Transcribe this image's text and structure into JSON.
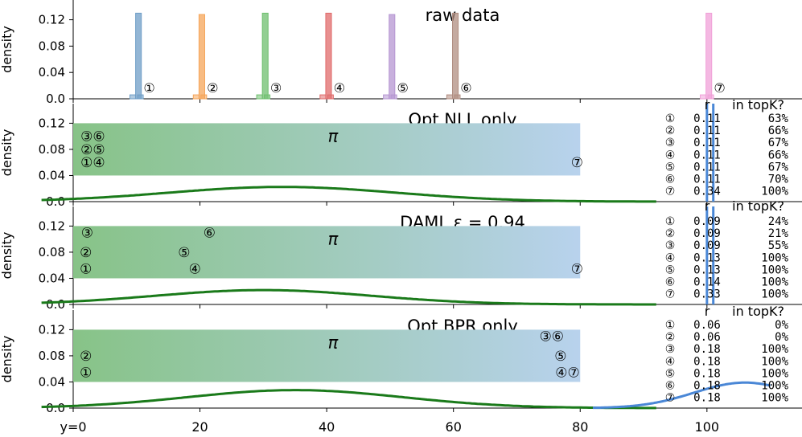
{
  "figure": {
    "ylabel": "density",
    "x_ticks": [
      {
        "v": 0,
        "label": "y=0"
      },
      {
        "v": 20,
        "label": "20"
      },
      {
        "v": 40,
        "label": "40"
      },
      {
        "v": 60,
        "label": "60"
      },
      {
        "v": 80,
        "label": "80"
      },
      {
        "v": 100,
        "label": "100"
      }
    ],
    "y_ticks": [
      {
        "v": 0,
        "label": "0.0"
      },
      {
        "v": 0.04,
        "label": "0.04"
      },
      {
        "v": 0.08,
        "label": "0.08"
      },
      {
        "v": 0.12,
        "label": "0.12"
      }
    ],
    "table_headers": {
      "r": "r",
      "topk": "in topK?"
    },
    "pi_symbol": "π",
    "gradient_colors": [
      "#87c387",
      "#b8d2ed"
    ],
    "curve_color": "#1a7a1a",
    "spike_color": "#4a87d6"
  },
  "chart_data": [
    {
      "type": "bar",
      "title": "raw data",
      "xlabel": "",
      "ylabel": "density",
      "ylim": [
        0,
        0.15
      ],
      "series": [
        {
          "name": "①",
          "x": 10,
          "value": 0.13,
          "color": "#6f9ec7"
        },
        {
          "name": "②",
          "x": 20,
          "value": 0.128,
          "color": "#f5a55a"
        },
        {
          "name": "③",
          "x": 30,
          "value": 0.13,
          "color": "#6fbf6f"
        },
        {
          "name": "④",
          "x": 40,
          "value": 0.13,
          "color": "#e06b6b"
        },
        {
          "name": "⑤",
          "x": 50,
          "value": 0.128,
          "color": "#b596d1"
        },
        {
          "name": "⑥",
          "x": 60,
          "value": 0.13,
          "color": "#b08d80"
        },
        {
          "name": "⑦",
          "x": 100,
          "value": 0.13,
          "color": "#f0a0d8"
        }
      ],
      "item_labels": [
        {
          "label": "①",
          "x": 12
        },
        {
          "label": "②",
          "x": 22
        },
        {
          "label": "③",
          "x": 32
        },
        {
          "label": "④",
          "x": 42
        },
        {
          "label": "⑤",
          "x": 52
        },
        {
          "label": "⑥",
          "x": 62
        },
        {
          "label": "⑦",
          "x": 102
        }
      ]
    },
    {
      "type": "line",
      "title": "Opt NLL only",
      "ylabel": "density",
      "ylim": [
        0,
        0.15
      ],
      "curve": {
        "mean": 33,
        "sd": 18,
        "scale": 0.0225
      },
      "spikes": [
        100,
        101
      ],
      "pi_range": [
        0,
        80
      ],
      "pi_label_x": 41,
      "markers": [
        {
          "label": "③⑥",
          "x": 3.1,
          "y": 0.1
        },
        {
          "label": "②⑤",
          "x": 3.1,
          "y": 0.08
        },
        {
          "label": "①④",
          "x": 3.1,
          "y": 0.06
        },
        {
          "label": "⑦",
          "x": 79.5,
          "y": 0.06
        }
      ],
      "table": [
        {
          "id": "①",
          "r": "0.11",
          "topk": "63%"
        },
        {
          "id": "②",
          "r": "0.11",
          "topk": "66%"
        },
        {
          "id": "③",
          "r": "0.11",
          "topk": "67%"
        },
        {
          "id": "④",
          "r": "0.11",
          "topk": "66%"
        },
        {
          "id": "⑤",
          "r": "0.11",
          "topk": "67%"
        },
        {
          "id": "⑥",
          "r": "0.11",
          "topk": "70%"
        },
        {
          "id": "⑦",
          "r": "0.34",
          "topk": "100%"
        }
      ]
    },
    {
      "type": "line",
      "title": "DAML ε = 0.94",
      "ylabel": "density",
      "ylim": [
        0,
        0.15
      ],
      "curve": {
        "mean": 30,
        "sd": 17,
        "scale": 0.022
      },
      "spikes": [
        100,
        101
      ],
      "pi_range": [
        0,
        80
      ],
      "pi_label_x": 41,
      "markers": [
        {
          "label": "③",
          "x": 2.2,
          "y": 0.11
        },
        {
          "label": "②",
          "x": 2.0,
          "y": 0.08
        },
        {
          "label": "①",
          "x": 2.0,
          "y": 0.055
        },
        {
          "label": "⑥",
          "x": 21.5,
          "y": 0.11
        },
        {
          "label": "⑤",
          "x": 17.5,
          "y": 0.08
        },
        {
          "label": "④",
          "x": 19.2,
          "y": 0.055
        },
        {
          "label": "⑦",
          "x": 79.5,
          "y": 0.055
        }
      ],
      "table": [
        {
          "id": "①",
          "r": "0.09",
          "topk": "24%"
        },
        {
          "id": "②",
          "r": "0.09",
          "topk": "21%"
        },
        {
          "id": "③",
          "r": "0.09",
          "topk": "55%"
        },
        {
          "id": "④",
          "r": "0.13",
          "topk": "100%"
        },
        {
          "id": "⑤",
          "r": "0.13",
          "topk": "100%"
        },
        {
          "id": "⑥",
          "r": "0.14",
          "topk": "100%"
        },
        {
          "id": "⑦",
          "r": "0.33",
          "topk": "100%"
        }
      ]
    },
    {
      "type": "line",
      "title": "Opt BPR only",
      "ylabel": "density",
      "ylim": [
        0,
        0.15
      ],
      "curve": {
        "mean": 35,
        "sd": 17,
        "scale": 0.0275
      },
      "tail_curve": {
        "mean": 106,
        "sd": 8,
        "scale": 0.039,
        "from": 82,
        "to": 110
      },
      "pi_range": [
        0,
        80
      ],
      "pi_label_x": 41,
      "markers": [
        {
          "label": "①",
          "x": 2.0,
          "y": 0.055
        },
        {
          "label": "②",
          "x": 2.0,
          "y": 0.08
        },
        {
          "label": "③⑥",
          "x": 75.5,
          "y": 0.11
        },
        {
          "label": "⑤",
          "x": 76.9,
          "y": 0.08
        },
        {
          "label": "④⑦",
          "x": 78.0,
          "y": 0.055
        }
      ],
      "table": [
        {
          "id": "①",
          "r": "0.06",
          "topk": "0%"
        },
        {
          "id": "②",
          "r": "0.06",
          "topk": "0%"
        },
        {
          "id": "③",
          "r": "0.18",
          "topk": "100%"
        },
        {
          "id": "④",
          "r": "0.18",
          "topk": "100%"
        },
        {
          "id": "⑤",
          "r": "0.18",
          "topk": "100%"
        },
        {
          "id": "⑥",
          "r": "0.18",
          "topk": "100%"
        },
        {
          "id": "⑦",
          "r": "0.18",
          "topk": "100%"
        }
      ]
    }
  ]
}
